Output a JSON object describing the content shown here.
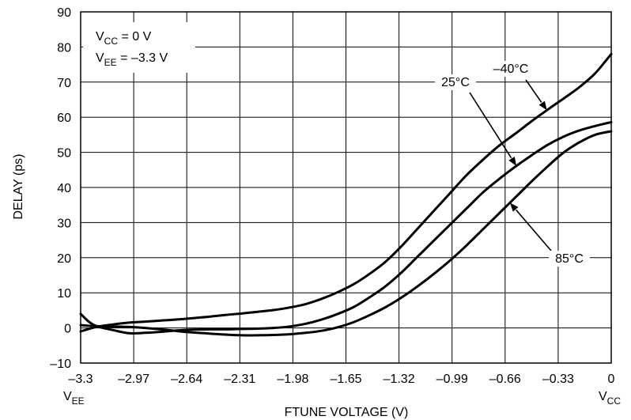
{
  "chart_data": {
    "type": "line",
    "xlabel": "FTUNE VOLTAGE (V)",
    "ylabel": "DELAY (ps)",
    "xlim": [
      -3.3,
      0
    ],
    "ylim": [
      -10,
      90
    ],
    "grid": true,
    "x_ticks": [
      -3.3,
      -2.97,
      -2.64,
      -2.31,
      -1.98,
      -1.65,
      -1.32,
      -0.99,
      -0.66,
      -0.33,
      0
    ],
    "x_tick_labels": [
      "–3.3",
      "–2.97",
      "–2.64",
      "–2.31",
      "–1.98",
      "–1.65",
      "–1.32",
      "–0.99",
      "–0.66",
      "–0.33",
      "0"
    ],
    "y_ticks": [
      -10,
      0,
      10,
      20,
      30,
      40,
      50,
      60,
      70,
      80,
      90
    ],
    "y_tick_labels": [
      "–10",
      "0",
      "10",
      "20",
      "30",
      "40",
      "50",
      "60",
      "70",
      "80",
      "90"
    ],
    "x_end_labels": {
      "left": {
        "main": "V",
        "sub": "EE"
      },
      "right": {
        "main": "V",
        "sub": "CC"
      }
    },
    "conditions": [
      {
        "main": "V",
        "sub": "CC",
        "rest": " = 0 V"
      },
      {
        "main": "V",
        "sub": "EE",
        "rest": " = –3.3 V"
      }
    ],
    "series": [
      {
        "name": "–40°C",
        "x": [
          -3.3,
          -3.25,
          -3.2,
          -3.1,
          -3.0,
          -2.9,
          -2.8,
          -2.7,
          -2.6,
          -2.5,
          -2.4,
          -2.3,
          -2.2,
          -2.1,
          -2.0,
          -1.9,
          -1.8,
          -1.7,
          -1.6,
          -1.5,
          -1.4,
          -1.3,
          -1.2,
          -1.1,
          -1.0,
          -0.9,
          -0.8,
          -0.7,
          -0.6,
          -0.5,
          -0.4,
          -0.3,
          -0.2,
          -0.1,
          0
        ],
        "values": [
          -1,
          -0.3,
          0.3,
          1.0,
          1.5,
          1.8,
          2.1,
          2.4,
          2.8,
          3.2,
          3.7,
          4.1,
          4.6,
          5.1,
          5.8,
          6.8,
          8.3,
          10.2,
          12.5,
          15.5,
          19.0,
          23.5,
          28.5,
          33.5,
          38.5,
          43.5,
          47.8,
          51.8,
          55.2,
          58.7,
          62.0,
          65.2,
          68.5,
          72.5,
          78.0
        ]
      },
      {
        "name": "25°C",
        "x": [
          -3.3,
          -3.25,
          -3.2,
          -3.1,
          -3.0,
          -2.9,
          -2.8,
          -2.7,
          -2.6,
          -2.5,
          -2.4,
          -2.3,
          -2.2,
          -2.1,
          -2.0,
          -1.9,
          -1.8,
          -1.7,
          -1.6,
          -1.5,
          -1.4,
          -1.3,
          -1.2,
          -1.1,
          -1.0,
          -0.9,
          -0.8,
          -0.7,
          -0.6,
          -0.5,
          -0.4,
          -0.3,
          -0.2,
          -0.1,
          0
        ],
        "values": [
          4,
          1.8,
          0.5,
          -0.6,
          -1.5,
          -1.4,
          -1.1,
          -0.7,
          -0.5,
          -0.4,
          -0.4,
          -0.3,
          -0.2,
          0.0,
          0.4,
          1.2,
          2.4,
          4.0,
          6.0,
          8.8,
          12.0,
          16.0,
          20.5,
          25.0,
          29.5,
          34.0,
          38.5,
          42.3,
          45.8,
          49.0,
          52.0,
          54.4,
          56.2,
          57.5,
          58.6
        ]
      },
      {
        "name": "85°C",
        "x": [
          -3.3,
          -3.25,
          -3.2,
          -3.1,
          -3.0,
          -2.9,
          -2.8,
          -2.7,
          -2.6,
          -2.5,
          -2.4,
          -2.3,
          -2.2,
          -2.1,
          -2.0,
          -1.9,
          -1.8,
          -1.7,
          -1.6,
          -1.5,
          -1.4,
          -1.3,
          -1.2,
          -1.1,
          -1.0,
          -0.9,
          -0.8,
          -0.7,
          -0.6,
          -0.5,
          -0.4,
          -0.3,
          -0.2,
          -0.1,
          0
        ],
        "values": [
          0.8,
          0.6,
          0.5,
          0.4,
          0.3,
          0.0,
          -0.4,
          -0.9,
          -1.3,
          -1.6,
          -1.9,
          -2.1,
          -2.1,
          -2.0,
          -1.8,
          -1.4,
          -0.8,
          0.2,
          1.7,
          3.7,
          6.0,
          8.8,
          12.0,
          15.5,
          19.3,
          23.5,
          28.0,
          32.5,
          37.0,
          41.5,
          45.8,
          49.8,
          52.8,
          55.0,
          56.0
        ]
      }
    ]
  }
}
